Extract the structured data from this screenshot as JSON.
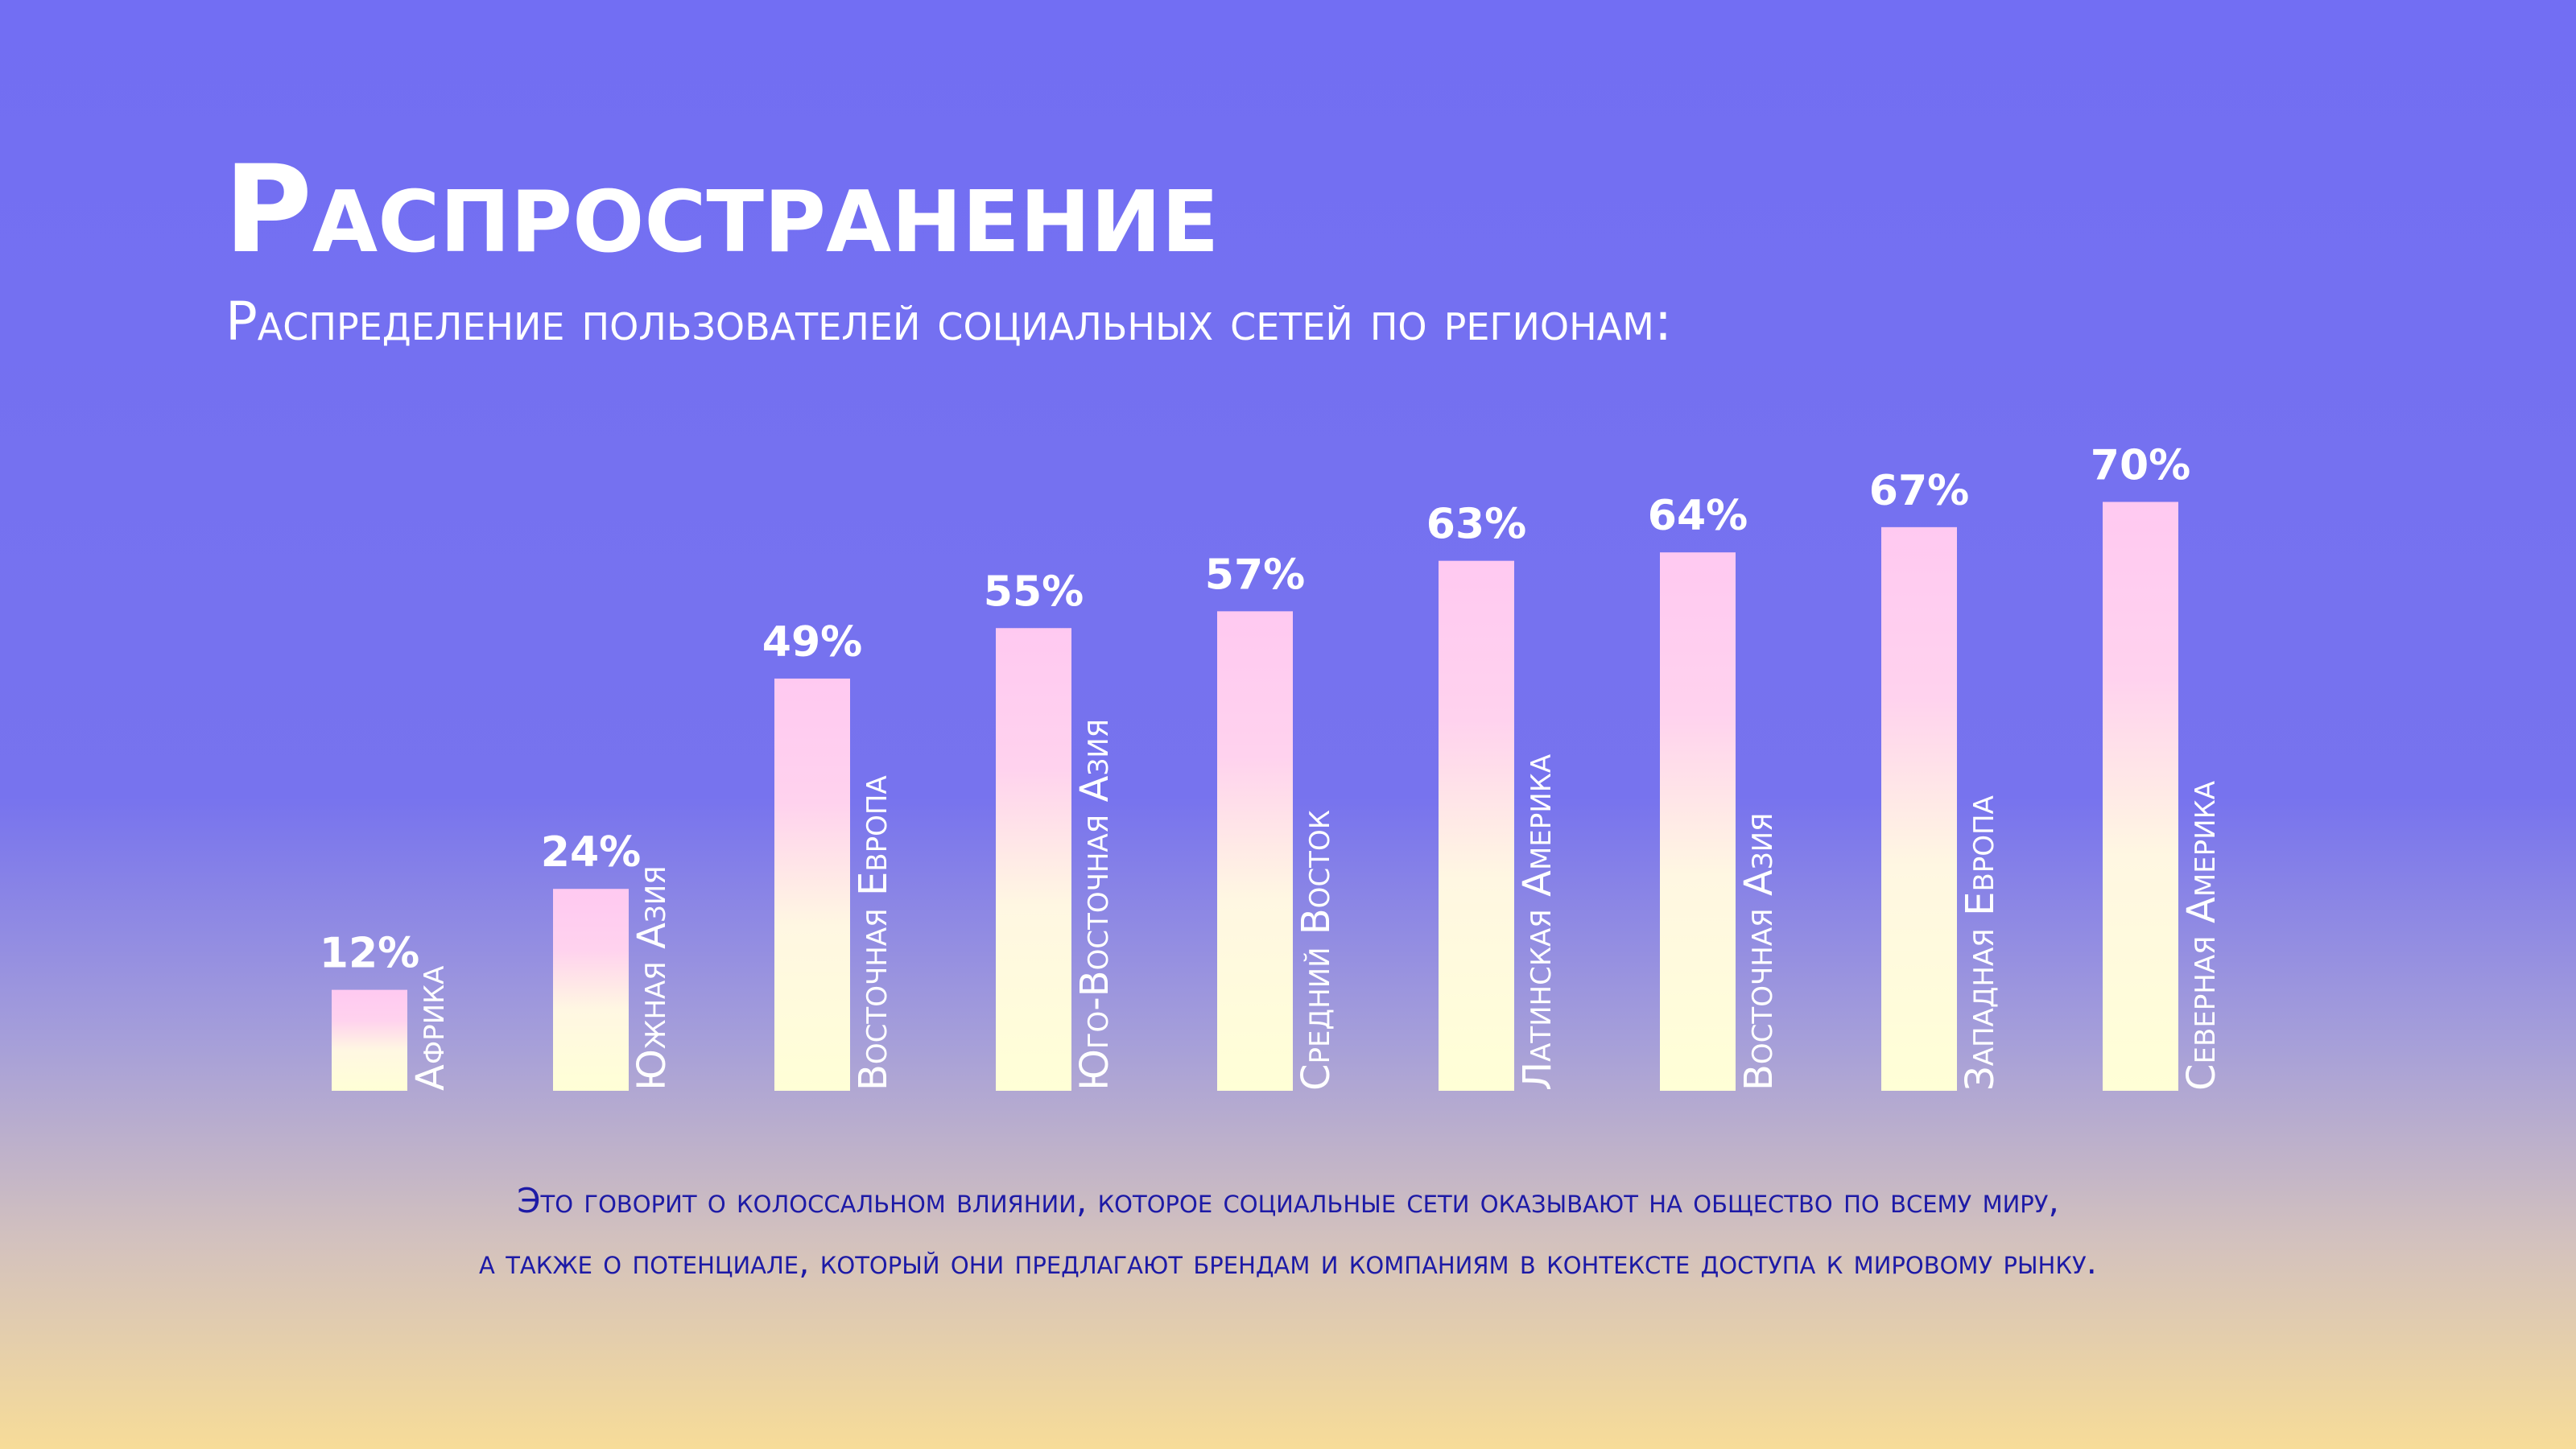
{
  "chart_data": {
    "type": "bar",
    "title": "Распространение",
    "subtitle": "Распределение пользователей социальных сетей по регионам:",
    "categories": [
      "Африка",
      "Южная Азия",
      "Восточная Европа",
      "Юго-Восточная Азия",
      "Средний Восток",
      "Латинская Америка",
      "Восточная Азия",
      "Западная Европа",
      "Северная Америка"
    ],
    "values": [
      12,
      24,
      49,
      55,
      57,
      63,
      64,
      67,
      70
    ],
    "value_labels": [
      "12%",
      "24%",
      "49%",
      "55%",
      "57%",
      "63%",
      "64%",
      "67%",
      "70%"
    ],
    "annotations": [
      "Это говорит о колоссальном влиянии, которое социальные сети оказывают на общество по всему миру,",
      "а также о потенциале, который они предлагают брендам и компаниям в контексте доступа к мировому рынку."
    ]
  }
}
